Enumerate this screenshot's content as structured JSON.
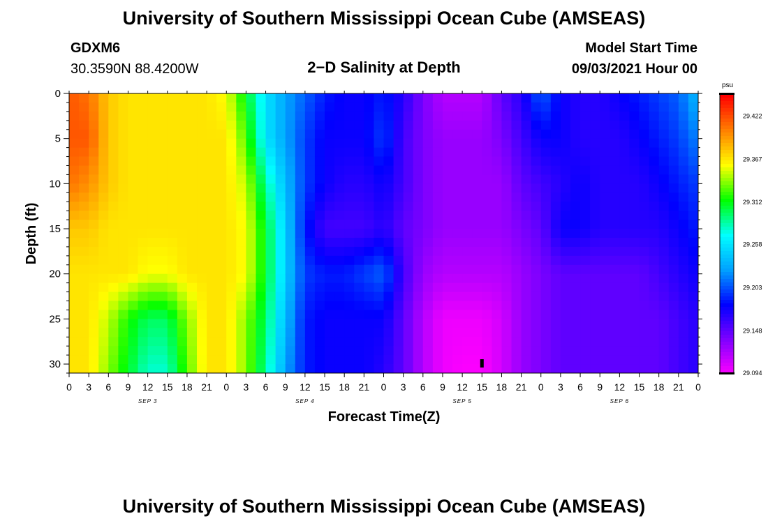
{
  "header": {
    "title": "University of Southern Mississippi Ocean Cube (AMSEAS)",
    "station_id": "GDXM6",
    "coordinates": "30.3590N  88.4200W",
    "plot_title": "2−D Salinity at Depth",
    "model_start_label": "Model Start Time",
    "model_start_value": "09/03/2021 Hour 00"
  },
  "footer": {
    "title": "University of Southern Mississippi Ocean Cube (AMSEAS)"
  },
  "chart_data": {
    "type": "heatmap",
    "title": "2−D Salinity at Depth",
    "xlabel": "Forecast Time(Z)",
    "ylabel": "Depth (ft)",
    "ylim": [
      0,
      31
    ],
    "y_reversed": true,
    "yticks": [
      "0",
      "5",
      "10",
      "15",
      "20",
      "25",
      "30"
    ],
    "xlim_hours": [
      0,
      96
    ],
    "xticks": [
      "0",
      "3",
      "6",
      "9",
      "12",
      "15",
      "18",
      "21",
      "0",
      "3",
      "6",
      "9",
      "12",
      "15",
      "18",
      "21",
      "0",
      "3",
      "6",
      "9",
      "12",
      "15",
      "18",
      "21",
      "0",
      "3",
      "6",
      "9",
      "12",
      "15",
      "18",
      "21",
      "0"
    ],
    "date_labels": [
      {
        "label": "SEP 3",
        "hour": 12
      },
      {
        "label": "SEP 4",
        "hour": 36
      },
      {
        "label": "SEP 5",
        "hour": 60
      },
      {
        "label": "SEP 6",
        "hour": 84
      }
    ],
    "colorbar": {
      "unit": "psu",
      "ticks": [
        "29.422",
        "29.367",
        "29.312",
        "29.258",
        "29.203",
        "29.148",
        "29.094"
      ],
      "min": 29.094,
      "max": 29.45,
      "colors": [
        "#ff00ff",
        "#8000ff",
        "#0000ff",
        "#00a0ff",
        "#00ffff",
        "#00ff00",
        "#ffff00",
        "#ff8000",
        "#ff0000"
      ]
    },
    "marker": {
      "hour": 63,
      "depth_ft": 30
    },
    "salinity_psu": {
      "hours": [
        0,
        3,
        6,
        9,
        12,
        15,
        18,
        21,
        24,
        27,
        30,
        33,
        36,
        39,
        42,
        45,
        48,
        51,
        54,
        57,
        60,
        63,
        66,
        69,
        72,
        75,
        78,
        81,
        84,
        87,
        90,
        93,
        96
      ],
      "depths_ft": [
        0,
        5,
        10,
        15,
        20,
        25,
        31
      ],
      "values": [
        [
          29.42,
          29.41,
          29.38,
          29.37,
          29.37,
          29.37,
          29.37,
          29.37,
          29.36,
          29.31,
          29.26,
          29.23,
          29.21,
          29.19,
          29.18,
          29.18,
          29.19,
          29.17,
          29.14,
          29.12,
          29.12,
          29.12,
          29.15,
          29.17,
          29.21,
          29.18,
          29.17,
          29.17,
          29.18,
          29.19,
          29.2,
          29.21,
          29.24
        ],
        [
          29.42,
          29.42,
          29.38,
          29.37,
          29.37,
          29.37,
          29.37,
          29.37,
          29.37,
          29.33,
          29.26,
          29.23,
          29.2,
          29.18,
          29.18,
          29.18,
          29.2,
          29.16,
          29.14,
          29.13,
          29.13,
          29.13,
          29.14,
          29.16,
          29.18,
          29.18,
          29.17,
          29.17,
          29.17,
          29.18,
          29.19,
          29.2,
          29.22
        ],
        [
          29.41,
          29.4,
          29.38,
          29.37,
          29.37,
          29.37,
          29.37,
          29.37,
          29.37,
          29.35,
          29.29,
          29.24,
          29.2,
          29.18,
          29.17,
          29.17,
          29.18,
          29.16,
          29.14,
          29.13,
          29.13,
          29.13,
          29.13,
          29.15,
          29.16,
          29.17,
          29.18,
          29.17,
          29.17,
          29.17,
          29.18,
          29.19,
          29.2
        ],
        [
          29.38,
          29.38,
          29.37,
          29.37,
          29.37,
          29.37,
          29.37,
          29.37,
          29.37,
          29.36,
          29.31,
          29.25,
          29.19,
          29.16,
          29.16,
          29.16,
          29.17,
          29.15,
          29.14,
          29.13,
          29.13,
          29.13,
          29.13,
          29.14,
          29.15,
          29.18,
          29.18,
          29.17,
          29.17,
          29.17,
          29.17,
          29.18,
          29.19
        ],
        [
          29.37,
          29.37,
          29.37,
          29.37,
          29.36,
          29.36,
          29.37,
          29.37,
          29.37,
          29.36,
          29.31,
          29.25,
          29.2,
          29.19,
          29.19,
          29.2,
          29.21,
          29.16,
          29.13,
          29.12,
          29.12,
          29.12,
          29.12,
          29.13,
          29.14,
          29.15,
          29.15,
          29.15,
          29.15,
          29.15,
          29.16,
          29.17,
          29.18
        ],
        [
          29.37,
          29.37,
          29.35,
          29.32,
          29.3,
          29.3,
          29.34,
          29.37,
          29.37,
          29.34,
          29.3,
          29.24,
          29.19,
          29.18,
          29.18,
          29.18,
          29.18,
          29.15,
          29.12,
          29.1,
          29.1,
          29.1,
          29.11,
          29.13,
          29.14,
          29.15,
          29.15,
          29.15,
          29.15,
          29.15,
          29.15,
          29.16,
          29.17
        ],
        [
          29.37,
          29.37,
          29.34,
          29.31,
          29.28,
          29.28,
          29.33,
          29.37,
          29.37,
          29.34,
          29.29,
          29.23,
          29.19,
          29.18,
          29.18,
          29.18,
          29.17,
          29.15,
          29.12,
          29.1,
          29.095,
          29.095,
          29.11,
          29.13,
          29.14,
          29.15,
          29.15,
          29.15,
          29.15,
          29.15,
          29.15,
          29.16,
          29.17
        ]
      ]
    }
  }
}
